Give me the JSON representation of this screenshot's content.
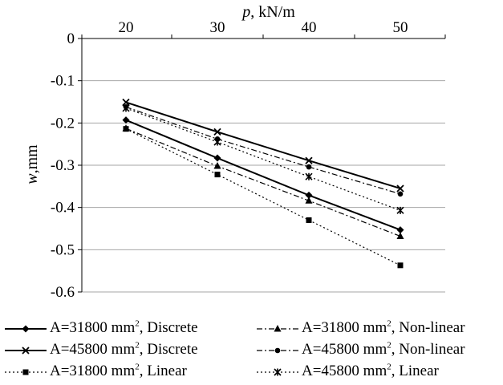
{
  "chart_data": {
    "type": "line",
    "x_axis_label": "p, kN/m",
    "y_axis_label": "w,mm",
    "x_axis_position": "top",
    "x_ticks": [
      20,
      30,
      40,
      50
    ],
    "y_ticks": [
      "0",
      "-0.1",
      "-0.2",
      "-0.3",
      "-0.4",
      "-0.5",
      "-0.6"
    ],
    "ylim": [
      -0.6,
      0
    ],
    "grid": "horizontal",
    "legend_placement": "bottom",
    "x": [
      20,
      30,
      40,
      50
    ],
    "series": [
      {
        "name_main": "A=31800 mm",
        "name_sup": "2",
        "name_tail": ",  Discrete",
        "line": "solid",
        "marker": "diamond",
        "values": [
          -0.193,
          -0.283,
          -0.371,
          -0.453
        ]
      },
      {
        "name_main": "A=45800 mm",
        "name_sup": "2",
        "name_tail": ", Discrete",
        "line": "solid",
        "marker": "x",
        "values": [
          -0.151,
          -0.221,
          -0.289,
          -0.355
        ]
      },
      {
        "name_main": "A=31800 mm",
        "name_sup": "2",
        "name_tail": ", Linear",
        "line": "dotted",
        "marker": "square",
        "values": [
          -0.214,
          -0.322,
          -0.43,
          -0.537
        ]
      },
      {
        "name_main": "A=31800 mm",
        "name_sup": "2",
        "name_tail": ", Non-linear",
        "line": "dashdot",
        "marker": "triangle",
        "values": [
          -0.213,
          -0.302,
          -0.384,
          -0.468
        ]
      },
      {
        "name_main": "A=45800 mm",
        "name_sup": "2",
        "name_tail": ", Non-linear",
        "line": "dashdot",
        "marker": "circle",
        "values": [
          -0.162,
          -0.238,
          -0.304,
          -0.368
        ]
      },
      {
        "name_main": "A=45800 mm",
        "name_sup": "2",
        "name_tail": ", Linear",
        "line": "dotted",
        "marker": "asterisk",
        "values": [
          -0.165,
          -0.245,
          -0.327,
          -0.407
        ]
      }
    ]
  }
}
